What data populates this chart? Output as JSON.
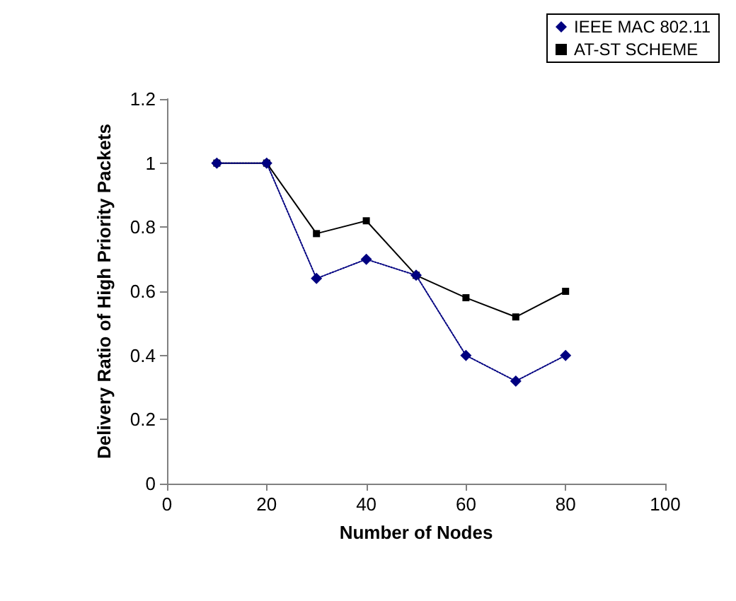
{
  "chart_data": {
    "type": "line",
    "xlabel": "Number of Nodes",
    "ylabel": "Delivery Ratio of High Priority Packets",
    "x": [
      10,
      20,
      30,
      40,
      50,
      60,
      70,
      80
    ],
    "series": [
      {
        "name": "IEEE MAC 802.11",
        "color": "#000080",
        "values": [
          1,
          1,
          0.64,
          0.7,
          0.65,
          0.4,
          0.32,
          0.4
        ],
        "marker": "diamond",
        "line_style": "dotted"
      },
      {
        "name": "AT-ST SCHEME",
        "color": "#000000",
        "values": [
          1,
          1,
          0.78,
          0.82,
          0.65,
          0.58,
          0.52,
          0.6
        ],
        "marker": "square",
        "line_style": "solid"
      }
    ],
    "xlim": [
      0,
      100
    ],
    "xticks": [
      0,
      20,
      40,
      60,
      80,
      100
    ],
    "ylim": [
      0,
      1.2
    ],
    "yticks": [
      0,
      0.2,
      0.4,
      0.6,
      0.8,
      1,
      1.2
    ],
    "grid": false,
    "legend": "top right"
  }
}
